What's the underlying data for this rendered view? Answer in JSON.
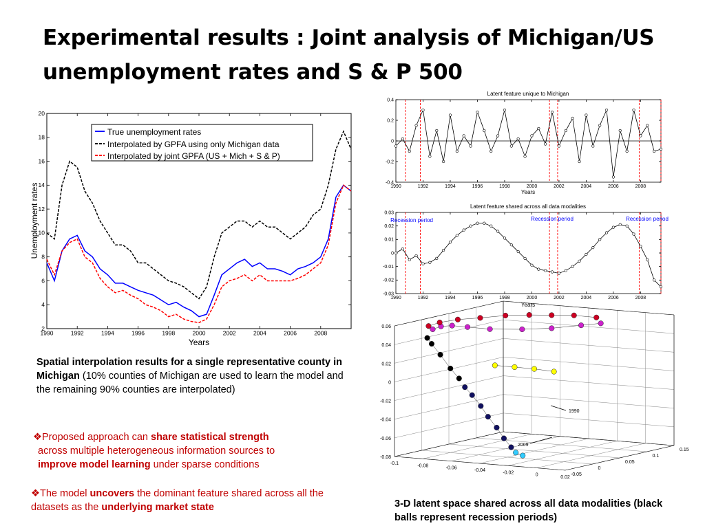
{
  "slide": {
    "title": "Experimental results : Joint analysis of Michigan/US unemployment rates and S & P 500"
  },
  "captions": {
    "main_bold": "Spatial interpolation results for a single representative county in Michigan",
    "main_rest": " (10% counties of  Michigan  are  used to learn  the model and the remaining  90% counties are interpolated)",
    "bullet1": {
      "marker": "❖",
      "pre": "Proposed approach can ",
      "bold1": "share statistical strength",
      "mid": "across multiple heterogeneous information sources to",
      "bold2": "improve model learning",
      "post": " under sparse conditions"
    },
    "bullet2": {
      "marker": "❖",
      "pre": "The model ",
      "bold1": "uncovers",
      "mid": " the dominant feature shared across all the datasets as the ",
      "bold2": "underlying market state"
    },
    "plot3d": "3-D latent space shared across all data modalities (black balls represent recession periods)"
  },
  "chart_data": [
    {
      "type": "line",
      "title": "",
      "xlabel": "Years",
      "ylabel": "Unemployment rates",
      "xlim": [
        1990,
        2010
      ],
      "ylim": [
        2,
        20
      ],
      "xticks": [
        1990,
        1992,
        1994,
        1996,
        1998,
        2000,
        2002,
        2004,
        2006,
        2008
      ],
      "yticks": [
        2,
        4,
        6,
        8,
        10,
        12,
        14,
        16,
        18,
        20
      ],
      "legend_position": "top-right",
      "x": [
        1990.0,
        1990.5,
        1991.0,
        1991.5,
        1992.0,
        1992.5,
        1993.0,
        1993.5,
        1994.0,
        1994.5,
        1995.0,
        1995.5,
        1996.0,
        1996.5,
        1997.0,
        1997.5,
        1998.0,
        1998.5,
        1999.0,
        1999.5,
        2000.0,
        2000.5,
        2001.0,
        2001.5,
        2002.0,
        2002.5,
        2003.0,
        2003.5,
        2004.0,
        2004.5,
        2005.0,
        2005.5,
        2006.0,
        2006.5,
        2007.0,
        2007.5,
        2008.0,
        2008.5,
        2009.0,
        2009.5,
        2010.0
      ],
      "series": [
        {
          "name": "True unemployment rates",
          "color": "#0000ff",
          "dash": "solid",
          "values": [
            7.5,
            6.0,
            8.5,
            9.5,
            9.8,
            8.5,
            8.0,
            7.0,
            6.5,
            5.8,
            5.8,
            5.5,
            5.2,
            5.0,
            4.8,
            4.4,
            4.0,
            4.2,
            3.8,
            3.5,
            3.0,
            3.2,
            4.8,
            6.5,
            7.0,
            7.5,
            7.8,
            7.2,
            7.5,
            7.0,
            7.0,
            6.8,
            6.5,
            7.0,
            7.2,
            7.5,
            8.0,
            9.5,
            13.0,
            14.0,
            13.5
          ]
        },
        {
          "name": "Interpolated by GPFA using only Michigan data",
          "color": "#000000",
          "dash": "dashed",
          "values": [
            10.0,
            9.5,
            14.0,
            16.0,
            15.5,
            13.5,
            12.5,
            11.0,
            10.0,
            9.0,
            9.0,
            8.5,
            7.5,
            7.5,
            7.0,
            6.5,
            6.0,
            5.8,
            5.5,
            5.0,
            4.5,
            5.5,
            8.0,
            10.0,
            10.5,
            11.0,
            11.0,
            10.5,
            11.0,
            10.5,
            10.5,
            10.0,
            9.5,
            10.0,
            10.5,
            11.5,
            12.0,
            14.0,
            17.0,
            18.5,
            17.0
          ]
        },
        {
          "name": "Interpolated by joint GPFA (US + Mich + S & P)",
          "color": "#ff0000",
          "dash": "dashed",
          "values": [
            7.8,
            6.5,
            8.5,
            9.2,
            9.5,
            8.0,
            7.5,
            6.2,
            5.5,
            5.0,
            5.2,
            4.8,
            4.5,
            4.0,
            3.8,
            3.5,
            3.0,
            3.2,
            2.8,
            2.6,
            2.5,
            2.8,
            4.0,
            5.5,
            6.0,
            6.2,
            6.5,
            6.0,
            6.5,
            6.0,
            6.0,
            6.0,
            6.0,
            6.2,
            6.5,
            7.0,
            7.5,
            9.0,
            12.5,
            14.0,
            13.5
          ]
        }
      ]
    },
    {
      "type": "line",
      "title": "Latent feature unique to Michigan",
      "xlabel": "Years",
      "ylabel": "",
      "xlim": [
        1990,
        2009.5
      ],
      "ylim": [
        -0.4,
        0.4
      ],
      "xticks": [
        1990,
        1992,
        1994,
        1996,
        1998,
        2000,
        2002,
        2004,
        2006,
        2008
      ],
      "yticks": [
        -0.4,
        -0.2,
        0,
        0.2,
        0.4
      ],
      "recession_lines": [
        1990.7,
        1991.8,
        2001.3,
        2001.9,
        2007.9,
        2009.5
      ],
      "x": [
        1990.0,
        1990.5,
        1991.0,
        1991.5,
        1992.0,
        1992.5,
        1993.0,
        1993.5,
        1994.0,
        1994.5,
        1995.0,
        1995.5,
        1996.0,
        1996.5,
        1997.0,
        1997.5,
        1998.0,
        1998.5,
        1999.0,
        1999.5,
        2000.0,
        2000.5,
        2001.0,
        2001.5,
        2002.0,
        2002.5,
        2003.0,
        2003.5,
        2004.0,
        2004.5,
        2005.0,
        2005.5,
        2006.0,
        2006.5,
        2007.0,
        2007.5,
        2008.0,
        2008.5,
        2009.0,
        2009.5
      ],
      "values": [
        -0.05,
        0.02,
        -0.1,
        0.15,
        0.3,
        -0.15,
        0.1,
        -0.2,
        0.25,
        -0.1,
        0.05,
        -0.05,
        0.28,
        0.1,
        -0.1,
        0.05,
        0.3,
        -0.05,
        0.02,
        -0.15,
        0.05,
        0.12,
        -0.03,
        0.28,
        -0.05,
        0.1,
        0.22,
        -0.2,
        0.25,
        -0.05,
        0.15,
        0.3,
        -0.35,
        0.1,
        -0.1,
        0.3,
        0.05,
        0.15,
        -0.1,
        -0.08
      ]
    },
    {
      "type": "line",
      "title": "Latent feature shared across all data modalities",
      "xlabel": "Years",
      "ylabel": "",
      "xlim": [
        1990,
        2009.5
      ],
      "ylim": [
        -0.03,
        0.03
      ],
      "xticks": [
        1990,
        1992,
        1994,
        1996,
        1998,
        2000,
        2002,
        2004,
        2006,
        2008
      ],
      "yticks": [
        -0.03,
        -0.02,
        -0.01,
        0,
        0.01,
        0.02,
        0.03
      ],
      "recession_lines": [
        1990.7,
        1991.8,
        2001.3,
        2001.9,
        2007.9,
        2009.5
      ],
      "annotations": [
        "Recession period",
        "Recession period",
        "Recession period"
      ],
      "x": [
        1990.0,
        1990.5,
        1991.0,
        1991.5,
        1992.0,
        1992.5,
        1993.0,
        1993.5,
        1994.0,
        1994.5,
        1995.0,
        1995.5,
        1996.0,
        1996.5,
        1997.0,
        1997.5,
        1998.0,
        1998.5,
        1999.0,
        1999.5,
        2000.0,
        2000.5,
        2001.0,
        2001.5,
        2002.0,
        2002.5,
        2003.0,
        2003.5,
        2004.0,
        2004.5,
        2005.0,
        2005.5,
        2006.0,
        2006.5,
        2007.0,
        2007.5,
        2008.0,
        2008.5,
        2009.0,
        2009.5
      ],
      "values": [
        0.0,
        0.003,
        -0.005,
        -0.002,
        -0.008,
        -0.007,
        -0.004,
        0.002,
        0.008,
        0.013,
        0.017,
        0.02,
        0.022,
        0.022,
        0.02,
        0.016,
        0.011,
        0.006,
        0.001,
        -0.004,
        -0.009,
        -0.012,
        -0.013,
        -0.014,
        -0.015,
        -0.013,
        -0.01,
        -0.006,
        -0.001,
        0.004,
        0.01,
        0.015,
        0.019,
        0.021,
        0.02,
        0.014,
        0.005,
        -0.005,
        -0.02,
        -0.025
      ]
    },
    {
      "type": "scatter",
      "title": "",
      "dimensions": 3,
      "xlim": [
        -0.1,
        0.02
      ],
      "ylim": [
        -0.05,
        0.15
      ],
      "zlim": [
        -0.08,
        0.06
      ],
      "xticks": [
        -0.1,
        -0.08,
        -0.06,
        -0.04,
        -0.02,
        0,
        0.02
      ],
      "yticks": [
        -0.05,
        0,
        0.05,
        0.1,
        0.15
      ],
      "zticks": [
        -0.08,
        -0.06,
        -0.04,
        -0.02,
        0,
        0.02,
        0.04,
        0.06
      ],
      "annotations": [
        "1990",
        "2009"
      ],
      "ball_colors": {
        "red": "#cc0022",
        "magenta": "#cc22cc",
        "black": "#000000",
        "navy": "#101060",
        "yellow": "#ffff00",
        "cyan": "#33ccff"
      },
      "segments": [
        {
          "name": "",
          "color": "magenta",
          "points": [
            [
              -0.02,
              0.12,
              0.05
            ],
            [
              -0.03,
              0.11,
              0.048
            ],
            [
              -0.045,
              0.095,
              0.045
            ],
            [
              -0.06,
              0.08,
              0.044
            ],
            [
              -0.075,
              0.06,
              0.045
            ],
            [
              -0.085,
              0.045,
              0.048
            ],
            [
              -0.092,
              0.035,
              0.05
            ],
            [
              -0.096,
              0.025,
              0.05
            ],
            [
              -0.098,
              0.015,
              0.048
            ]
          ]
        },
        {
          "name": "",
          "color": "red",
          "points": [
            [
              -0.099,
              0.01,
              0.052
            ],
            [
              -0.095,
              0.02,
              0.055
            ],
            [
              -0.088,
              0.035,
              0.057
            ],
            [
              -0.078,
              0.05,
              0.058
            ],
            [
              -0.066,
              0.065,
              0.06
            ],
            [
              -0.055,
              0.08,
              0.06
            ],
            [
              -0.045,
              0.095,
              0.059
            ],
            [
              -0.035,
              0.11,
              0.058
            ],
            [
              -0.025,
              0.125,
              0.055
            ]
          ]
        },
        {
          "name": "",
          "color": "black",
          "points": [
            [
              -0.098,
              0.005,
              0.04
            ],
            [
              -0.093,
              0.0,
              0.035
            ],
            [
              -0.085,
              -0.005,
              0.025
            ],
            [
              -0.076,
              -0.01,
              0.012
            ],
            [
              -0.068,
              -0.015,
              0.003
            ]
          ]
        },
        {
          "name": "",
          "color": "navy",
          "points": [
            [
              -0.062,
              -0.02,
              -0.005
            ],
            [
              -0.055,
              -0.025,
              -0.012
            ],
            [
              -0.047,
              -0.03,
              -0.022
            ],
            [
              -0.04,
              -0.035,
              -0.032
            ],
            [
              -0.032,
              -0.04,
              -0.042
            ],
            [
              -0.025,
              -0.045,
              -0.052
            ],
            [
              -0.018,
              -0.05,
              -0.06
            ]
          ]
        },
        {
          "name": "",
          "color": "yellow",
          "points": [
            [
              -0.06,
              0.03,
              0.012
            ],
            [
              -0.05,
              0.04,
              0.01
            ],
            [
              -0.04,
              0.05,
              0.008
            ],
            [
              -0.03,
              0.06,
              0.005
            ]
          ]
        },
        {
          "name": "",
          "color": "cyan",
          "points": [
            [
              -0.014,
              -0.052,
              -0.065
            ],
            [
              -0.008,
              -0.055,
              -0.067
            ]
          ]
        }
      ]
    }
  ]
}
